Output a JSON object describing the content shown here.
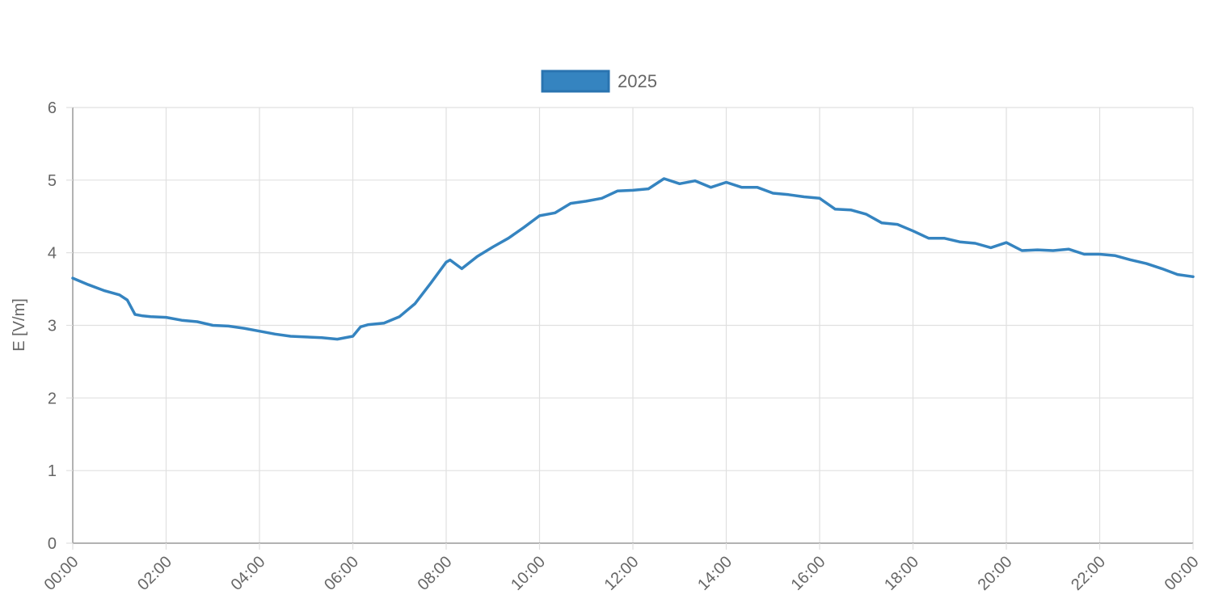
{
  "chart_data": {
    "type": "line",
    "title": "",
    "xlabel": "",
    "ylabel": "E [V/m]",
    "legend": {
      "position": "top-center",
      "entries": [
        "2025"
      ]
    },
    "grid": true,
    "xlim": [
      "00:00",
      "24:00"
    ],
    "ylim": [
      0,
      6
    ],
    "y_ticks": [
      "0",
      "1",
      "2",
      "3",
      "4",
      "5",
      "6"
    ],
    "x_ticks": [
      "00:00",
      "02:00",
      "04:00",
      "06:00",
      "08:00",
      "10:00",
      "12:00",
      "14:00",
      "16:00",
      "18:00",
      "20:00",
      "22:00",
      "00:00"
    ],
    "colors": {
      "series": "#3584c0",
      "grid": "#e0e0e0",
      "axis": "#999999",
      "text": "#666666"
    },
    "series": [
      {
        "name": "2025",
        "color": "#3584c0",
        "x": [
          "00:00",
          "00:20",
          "00:40",
          "01:00",
          "01:10",
          "01:20",
          "01:30",
          "01:40",
          "02:00",
          "02:20",
          "02:40",
          "03:00",
          "03:20",
          "03:40",
          "04:00",
          "04:20",
          "04:40",
          "05:00",
          "05:20",
          "05:40",
          "06:00",
          "06:10",
          "06:20",
          "06:40",
          "07:00",
          "07:20",
          "07:40",
          "08:00",
          "08:05",
          "08:20",
          "08:40",
          "09:00",
          "09:20",
          "09:40",
          "10:00",
          "10:20",
          "10:40",
          "11:00",
          "11:20",
          "11:40",
          "12:00",
          "12:20",
          "12:40",
          "13:00",
          "13:20",
          "13:40",
          "14:00",
          "14:20",
          "14:40",
          "15:00",
          "15:20",
          "15:40",
          "16:00",
          "16:20",
          "16:40",
          "17:00",
          "17:20",
          "17:40",
          "18:00",
          "18:20",
          "18:40",
          "19:00",
          "19:20",
          "19:40",
          "20:00",
          "20:20",
          "20:40",
          "21:00",
          "21:20",
          "21:40",
          "22:00",
          "22:20",
          "22:40",
          "23:00",
          "23:20",
          "23:40",
          "24:00"
        ],
        "y": [
          3.65,
          3.56,
          3.48,
          3.42,
          3.35,
          3.15,
          3.13,
          3.12,
          3.11,
          3.07,
          3.05,
          3.0,
          2.99,
          2.96,
          2.92,
          2.88,
          2.85,
          2.84,
          2.83,
          2.81,
          2.85,
          2.98,
          3.01,
          3.03,
          3.12,
          3.3,
          3.58,
          3.87,
          3.9,
          3.78,
          3.95,
          4.08,
          4.2,
          4.35,
          4.51,
          4.55,
          4.68,
          4.71,
          4.75,
          4.85,
          4.86,
          4.88,
          5.02,
          4.95,
          4.99,
          4.9,
          4.97,
          4.9,
          4.9,
          4.82,
          4.8,
          4.77,
          4.75,
          4.6,
          4.59,
          4.53,
          4.41,
          4.39,
          4.3,
          4.2,
          4.2,
          4.15,
          4.13,
          4.07,
          4.14,
          4.03,
          4.04,
          4.03,
          4.05,
          3.98,
          3.98,
          3.96,
          3.9,
          3.85,
          3.78,
          3.7,
          3.67
        ]
      }
    ]
  }
}
